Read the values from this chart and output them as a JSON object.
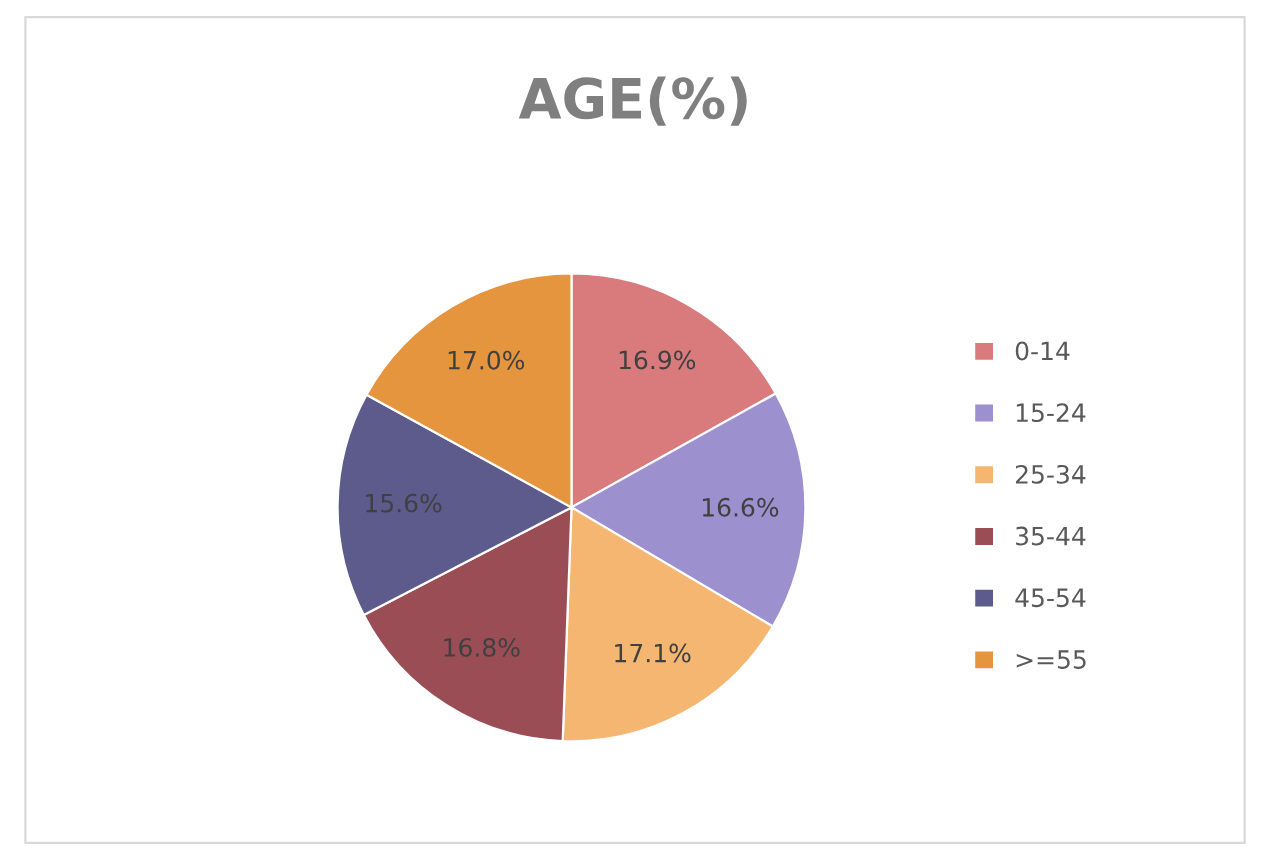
{
  "chart_data": {
    "type": "pie",
    "title": "AGE(%)",
    "categories": [
      "0-14",
      "15-24",
      "25-34",
      "35-44",
      "45-54",
      ">=55"
    ],
    "values": [
      16.9,
      16.6,
      17.1,
      16.8,
      15.6,
      17.0
    ],
    "value_labels": [
      "16.9%",
      "16.6%",
      "17.1%",
      "16.8%",
      "15.6%",
      "17.0%"
    ],
    "colors": [
      "#d97a7c",
      "#9d90cf",
      "#f5b672",
      "#9a4d55",
      "#5d5a8c",
      "#e4953e"
    ],
    "legend": "right"
  }
}
